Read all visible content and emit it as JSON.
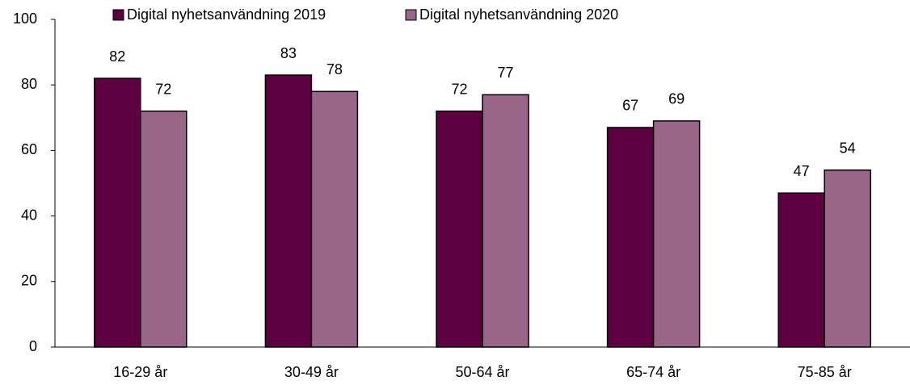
{
  "chart_data": {
    "type": "bar",
    "categories": [
      "16-29 år",
      "30-49 år",
      "50-64 år",
      "65-74 år",
      "75-85 år"
    ],
    "series": [
      {
        "name": "Digital nyhetsanvändning 2019",
        "color": "#5c0040",
        "values": [
          82,
          83,
          72,
          67,
          47
        ]
      },
      {
        "name": "Digital nyhetsanvändning 2020",
        "color": "#996688",
        "values": [
          72,
          78,
          77,
          69,
          54
        ]
      }
    ],
    "ylim": [
      0,
      100
    ],
    "yticks": [
      0,
      20,
      40,
      60,
      80,
      100
    ],
    "grid": false,
    "legend": "top"
  }
}
